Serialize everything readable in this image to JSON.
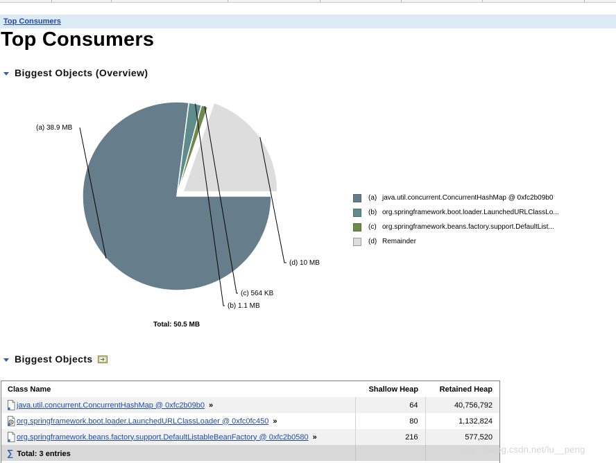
{
  "breadcrumb": "Top Consumers",
  "page_title": "Top Consumers",
  "overview_section": {
    "title": "Biggest Objects (Overview)"
  },
  "chart_data": {
    "type": "pie",
    "title": "Biggest Objects (Overview)",
    "start_angle_deg": 0,
    "explode_index": 3,
    "slices": [
      {
        "key": "(a)",
        "legend": "java.util.concurrent.ConcurrentHashMap @ 0xfc2b09b0",
        "label": "38.9 MB",
        "value": 38.9,
        "color": "#667d8b"
      },
      {
        "key": "(b)",
        "legend": "org.springframework.boot.loader.LaunchedURLClassLo...",
        "label": "1.1 MB",
        "value": 1.1,
        "color": "#5e8c8c"
      },
      {
        "key": "(c)",
        "legend": "org.springframework.beans.factory.support.DefaultList...",
        "label": "564 KB",
        "value": 0.564,
        "color": "#6e8a4b"
      },
      {
        "key": "(d)",
        "legend": "Remainder",
        "label": "10 MB",
        "value": 9.936,
        "color": "#dddddd"
      }
    ],
    "total_label": "Total: 50.5 MB"
  },
  "table_section": {
    "title": "Biggest Objects"
  },
  "table": {
    "columns": [
      "Class Name",
      "Shallow Heap",
      "Retained Heap"
    ],
    "rows": [
      {
        "icon": "document-icon",
        "class_name": "java.util.concurrent.ConcurrentHashMap @ 0xfc2b09b0",
        "shallow": "64",
        "retained": "40,756,792"
      },
      {
        "icon": "classloader-icon",
        "class_name": "org.springframework.boot.loader.LaunchedURLClassLoader @ 0xfc0fc450",
        "shallow": "80",
        "retained": "1,132,824"
      },
      {
        "icon": "document-icon",
        "class_name": "org.springframework.beans.factory.support.DefaultListableBeanFactory @ 0xfc2b0580",
        "shallow": "216",
        "retained": "577,520"
      }
    ],
    "more_glyph": "»",
    "total": {
      "glyph": "∑",
      "label": "Total: 3 entries"
    }
  },
  "watermark": "https://blog.csdn.net/lu__peng"
}
